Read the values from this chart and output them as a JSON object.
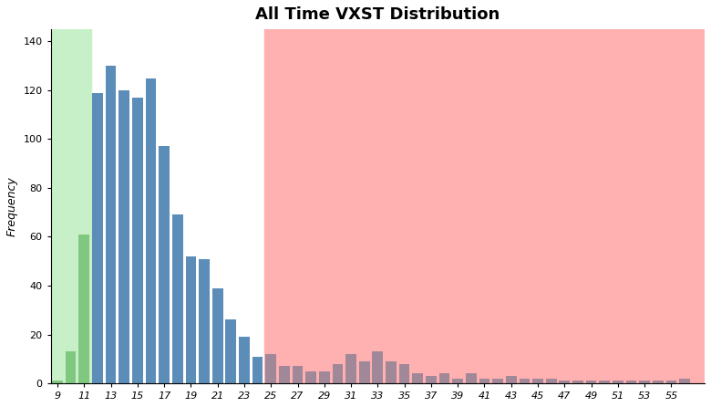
{
  "title": "All Time VXST Distribution",
  "ylabel": "Frequency",
  "categories": [
    9,
    10,
    11,
    12,
    13,
    14,
    15,
    16,
    17,
    18,
    19,
    20,
    21,
    22,
    23,
    24,
    25,
    26,
    27,
    28,
    29,
    30,
    31,
    32,
    33,
    34,
    35,
    36,
    37,
    38,
    39,
    40,
    41,
    42,
    43,
    44,
    45,
    46,
    47,
    48,
    49,
    50,
    51,
    52,
    53,
    54,
    55,
    56
  ],
  "values": [
    1,
    13,
    61,
    119,
    130,
    120,
    117,
    125,
    97,
    69,
    52,
    51,
    39,
    26,
    19,
    11,
    12,
    7,
    7,
    5,
    5,
    8,
    12,
    9,
    13,
    9,
    8,
    4,
    3,
    4,
    2,
    4,
    2,
    2,
    3,
    2,
    2,
    2,
    1,
    1,
    1,
    1,
    1,
    1,
    1,
    1,
    1,
    2
  ],
  "green_region_end": 11.5,
  "pink_region_start": 24.5,
  "green_bg": "#c8f0c8",
  "pink_bg": "#ffb0b0",
  "blue_bar_color": "#5b8db8",
  "mauve_bar_color": "#a08898",
  "green_bar_color": "#80c880",
  "ylim": [
    0,
    145
  ],
  "xlim_left": 8.5,
  "xlim_right": 57.5,
  "title_fontsize": 13,
  "axis_fontsize": 9,
  "tick_fontsize": 8,
  "figsize": [
    7.8,
    4.46
  ],
  "dpi": 100,
  "green_bar_bins": [
    9,
    10,
    11
  ],
  "blue_bar_max": 24,
  "pink_bar_min": 25
}
